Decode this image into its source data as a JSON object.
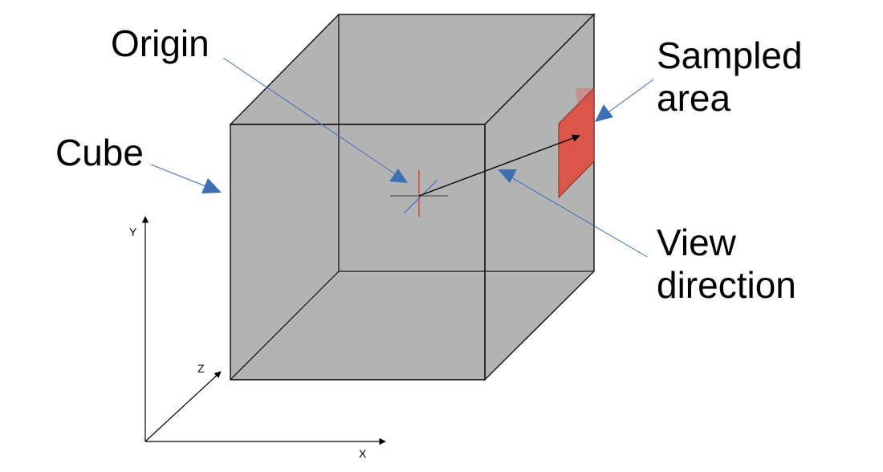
{
  "labels": {
    "origin": "Origin",
    "sampled_area_line1": "Sampled",
    "sampled_area_line2": "area",
    "cube": "Cube",
    "view_direction_line1": "View",
    "view_direction_line2": "direction"
  },
  "axes": {
    "x": "X",
    "y": "Y",
    "z": "Z"
  },
  "colors": {
    "cube_fill": "#b3b3b3",
    "cube_edge": "#1a1a1a",
    "sampled_area": "#d9574a",
    "pointer": "#3e6fb5",
    "origin_marker_vertical": "#d9574a",
    "origin_marker_diagonal": "#3e6fb5"
  }
}
